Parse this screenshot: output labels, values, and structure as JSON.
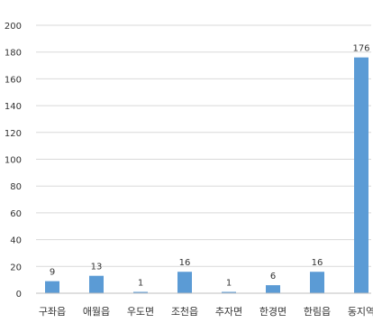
{
  "chart_data": {
    "type": "bar",
    "categories": [
      "구좌읍",
      "애월읍",
      "우도면",
      "조천읍",
      "추자면",
      "한경면",
      "한림읍",
      "동지역"
    ],
    "values": [
      9,
      13,
      1,
      16,
      1,
      6,
      16,
      176
    ],
    "data_labels": [
      "9",
      "13",
      "1",
      "16",
      "1",
      "6",
      "16",
      "176"
    ],
    "yticks": [
      "0",
      "20",
      "40",
      "60",
      "80",
      "100",
      "120",
      "140",
      "160",
      "180",
      "200"
    ],
    "ylim": [
      0,
      200
    ],
    "grid": true,
    "legend": "none",
    "colors": {
      "bar": "#5b9bd5",
      "grid": "#d9d9d9",
      "axis": "#bfbfbf"
    }
  }
}
